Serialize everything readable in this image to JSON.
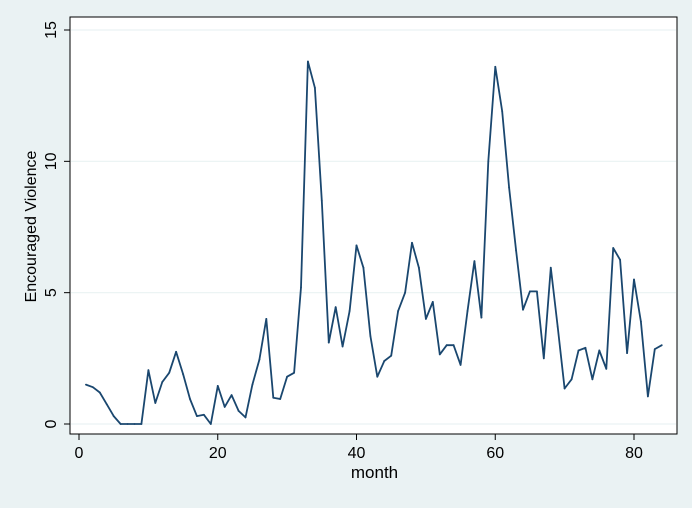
{
  "chart_data": {
    "type": "line",
    "title": "",
    "xlabel": "month",
    "ylabel": "Encouraged Violence",
    "xlim": [
      0,
      85
    ],
    "ylim": [
      0,
      15
    ],
    "xticks": [
      0,
      20,
      40,
      60,
      80
    ],
    "yticks": [
      0,
      5,
      10,
      15
    ],
    "grid": "horizontal",
    "colors": {
      "background": "#eaf2f3",
      "plot_area": "#ffffff",
      "line": "#1a476f",
      "grid": "#eaf2f3"
    },
    "series": [
      {
        "x": [
          1,
          2,
          3,
          4,
          5,
          6,
          7,
          8,
          9,
          10,
          11,
          12,
          13,
          14,
          15,
          16,
          17,
          18,
          19,
          20,
          21,
          22,
          23,
          24,
          25,
          26,
          27,
          28,
          29,
          30,
          31,
          32,
          33,
          34,
          35,
          36,
          37,
          38,
          39,
          40,
          41,
          42,
          43,
          44,
          45,
          46,
          47,
          48,
          49,
          50,
          51,
          52,
          53,
          54,
          55,
          56,
          57,
          58,
          59,
          60,
          61,
          62,
          63,
          64,
          65,
          66,
          67,
          68,
          69,
          70,
          71,
          72,
          73,
          74,
          75,
          76,
          77,
          78,
          79,
          80,
          81,
          82,
          83,
          84
        ],
        "values": [
          1.5,
          1.4,
          1.2,
          0.75,
          0.3,
          0.0,
          0.0,
          0.0,
          0.0,
          2.05,
          0.8,
          1.6,
          1.95,
          2.75,
          1.9,
          0.95,
          0.3,
          0.35,
          0.0,
          1.45,
          0.65,
          1.1,
          0.5,
          0.25,
          1.5,
          2.45,
          4.0,
          1.0,
          0.95,
          1.8,
          1.95,
          5.2,
          13.8,
          12.8,
          8.5,
          3.1,
          4.45,
          2.95,
          4.3,
          6.8,
          5.95,
          3.35,
          1.8,
          2.4,
          2.6,
          4.3,
          5.0,
          6.9,
          5.95,
          4.0,
          4.65,
          2.65,
          3.0,
          3.0,
          2.25,
          4.3,
          6.2,
          4.05,
          10.0,
          13.6,
          11.9,
          9.0,
          6.6,
          4.35,
          5.05,
          5.05,
          2.5,
          5.95,
          3.7,
          1.35,
          1.7,
          2.8,
          2.9,
          1.7,
          2.8,
          2.1,
          6.7,
          6.25,
          2.7,
          5.5,
          3.9,
          1.05,
          2.85,
          3.0
        ]
      }
    ]
  }
}
